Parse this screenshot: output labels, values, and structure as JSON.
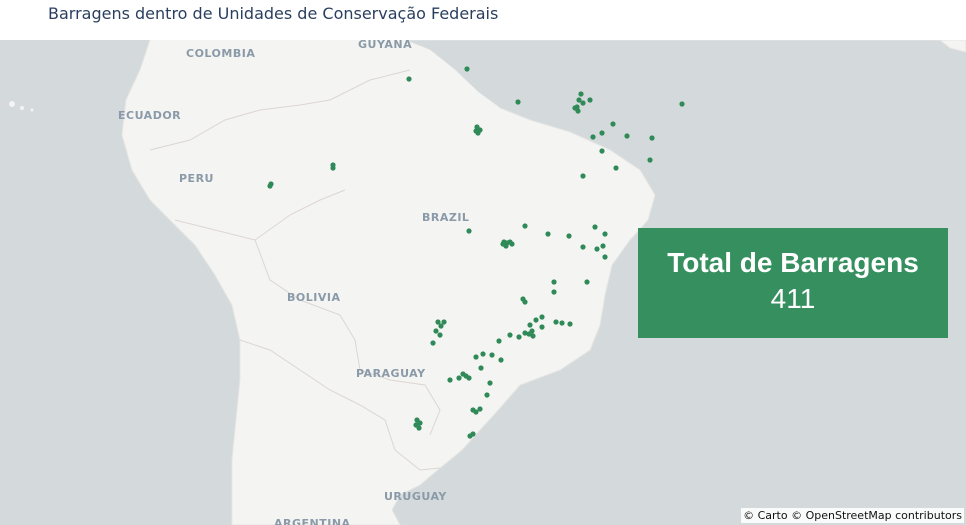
{
  "title": "Barragens dentro de Unidades de Conservação Federais",
  "map": {
    "basemap": "Carto Positron",
    "marker_color": "#2f8a58",
    "country_labels": [
      {
        "id": "colombia",
        "label": "COLOMBIA"
      },
      {
        "id": "guyana",
        "label": "GUYANA"
      },
      {
        "id": "ecuador",
        "label": "ECUADOR"
      },
      {
        "id": "peru",
        "label": "PERU"
      },
      {
        "id": "brazil",
        "label": "BRAZIL"
      },
      {
        "id": "bolivia",
        "label": "BOLIVIA"
      },
      {
        "id": "paraguay",
        "label": "PARAGUAY"
      },
      {
        "id": "uruguay",
        "label": "URUGUAY"
      },
      {
        "id": "argentina",
        "label": "ARGENTINA"
      }
    ],
    "attribution": "© Carto © OpenStreetMap contributors"
  },
  "kpi": {
    "label": "Total de Barragens",
    "value": "411",
    "background_color": "#368f5f"
  }
}
